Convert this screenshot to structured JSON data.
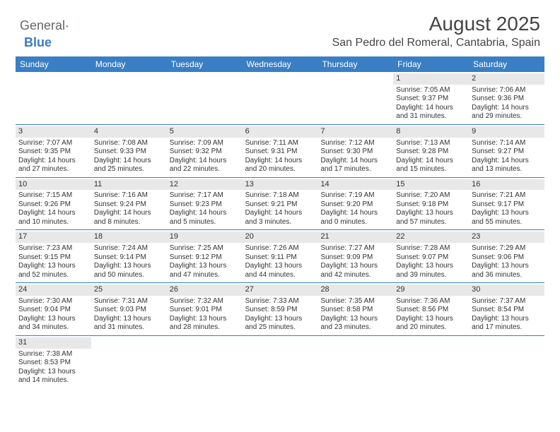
{
  "brand": {
    "part1": "General",
    "part2": "Blue"
  },
  "header": {
    "title": "August 2025",
    "location": "San Pedro del Romeral, Cantabria, Spain"
  },
  "colors": {
    "header_bar": "#3a7fc4",
    "row_divider": "#3a7fc4",
    "daynum_bg": "#e8e8e8",
    "text": "#333333",
    "brand_blue": "#3a7bbf"
  },
  "daysOfWeek": [
    "Sunday",
    "Monday",
    "Tuesday",
    "Wednesday",
    "Thursday",
    "Friday",
    "Saturday"
  ],
  "weeks": [
    [
      {
        "day": "",
        "lines": []
      },
      {
        "day": "",
        "lines": []
      },
      {
        "day": "",
        "lines": []
      },
      {
        "day": "",
        "lines": []
      },
      {
        "day": "",
        "lines": []
      },
      {
        "day": "1",
        "lines": [
          "Sunrise: 7:05 AM",
          "Sunset: 9:37 PM",
          "Daylight: 14 hours and 31 minutes."
        ]
      },
      {
        "day": "2",
        "lines": [
          "Sunrise: 7:06 AM",
          "Sunset: 9:36 PM",
          "Daylight: 14 hours and 29 minutes."
        ]
      }
    ],
    [
      {
        "day": "3",
        "lines": [
          "Sunrise: 7:07 AM",
          "Sunset: 9:35 PM",
          "Daylight: 14 hours and 27 minutes."
        ]
      },
      {
        "day": "4",
        "lines": [
          "Sunrise: 7:08 AM",
          "Sunset: 9:33 PM",
          "Daylight: 14 hours and 25 minutes."
        ]
      },
      {
        "day": "5",
        "lines": [
          "Sunrise: 7:09 AM",
          "Sunset: 9:32 PM",
          "Daylight: 14 hours and 22 minutes."
        ]
      },
      {
        "day": "6",
        "lines": [
          "Sunrise: 7:11 AM",
          "Sunset: 9:31 PM",
          "Daylight: 14 hours and 20 minutes."
        ]
      },
      {
        "day": "7",
        "lines": [
          "Sunrise: 7:12 AM",
          "Sunset: 9:30 PM",
          "Daylight: 14 hours and 17 minutes."
        ]
      },
      {
        "day": "8",
        "lines": [
          "Sunrise: 7:13 AM",
          "Sunset: 9:28 PM",
          "Daylight: 14 hours and 15 minutes."
        ]
      },
      {
        "day": "9",
        "lines": [
          "Sunrise: 7:14 AM",
          "Sunset: 9:27 PM",
          "Daylight: 14 hours and 13 minutes."
        ]
      }
    ],
    [
      {
        "day": "10",
        "lines": [
          "Sunrise: 7:15 AM",
          "Sunset: 9:26 PM",
          "Daylight: 14 hours and 10 minutes."
        ]
      },
      {
        "day": "11",
        "lines": [
          "Sunrise: 7:16 AM",
          "Sunset: 9:24 PM",
          "Daylight: 14 hours and 8 minutes."
        ]
      },
      {
        "day": "12",
        "lines": [
          "Sunrise: 7:17 AM",
          "Sunset: 9:23 PM",
          "Daylight: 14 hours and 5 minutes."
        ]
      },
      {
        "day": "13",
        "lines": [
          "Sunrise: 7:18 AM",
          "Sunset: 9:21 PM",
          "Daylight: 14 hours and 3 minutes."
        ]
      },
      {
        "day": "14",
        "lines": [
          "Sunrise: 7:19 AM",
          "Sunset: 9:20 PM",
          "Daylight: 14 hours and 0 minutes."
        ]
      },
      {
        "day": "15",
        "lines": [
          "Sunrise: 7:20 AM",
          "Sunset: 9:18 PM",
          "Daylight: 13 hours and 57 minutes."
        ]
      },
      {
        "day": "16",
        "lines": [
          "Sunrise: 7:21 AM",
          "Sunset: 9:17 PM",
          "Daylight: 13 hours and 55 minutes."
        ]
      }
    ],
    [
      {
        "day": "17",
        "lines": [
          "Sunrise: 7:23 AM",
          "Sunset: 9:15 PM",
          "Daylight: 13 hours and 52 minutes."
        ]
      },
      {
        "day": "18",
        "lines": [
          "Sunrise: 7:24 AM",
          "Sunset: 9:14 PM",
          "Daylight: 13 hours and 50 minutes."
        ]
      },
      {
        "day": "19",
        "lines": [
          "Sunrise: 7:25 AM",
          "Sunset: 9:12 PM",
          "Daylight: 13 hours and 47 minutes."
        ]
      },
      {
        "day": "20",
        "lines": [
          "Sunrise: 7:26 AM",
          "Sunset: 9:11 PM",
          "Daylight: 13 hours and 44 minutes."
        ]
      },
      {
        "day": "21",
        "lines": [
          "Sunrise: 7:27 AM",
          "Sunset: 9:09 PM",
          "Daylight: 13 hours and 42 minutes."
        ]
      },
      {
        "day": "22",
        "lines": [
          "Sunrise: 7:28 AM",
          "Sunset: 9:07 PM",
          "Daylight: 13 hours and 39 minutes."
        ]
      },
      {
        "day": "23",
        "lines": [
          "Sunrise: 7:29 AM",
          "Sunset: 9:06 PM",
          "Daylight: 13 hours and 36 minutes."
        ]
      }
    ],
    [
      {
        "day": "24",
        "lines": [
          "Sunrise: 7:30 AM",
          "Sunset: 9:04 PM",
          "Daylight: 13 hours and 34 minutes."
        ]
      },
      {
        "day": "25",
        "lines": [
          "Sunrise: 7:31 AM",
          "Sunset: 9:03 PM",
          "Daylight: 13 hours and 31 minutes."
        ]
      },
      {
        "day": "26",
        "lines": [
          "Sunrise: 7:32 AM",
          "Sunset: 9:01 PM",
          "Daylight: 13 hours and 28 minutes."
        ]
      },
      {
        "day": "27",
        "lines": [
          "Sunrise: 7:33 AM",
          "Sunset: 8:59 PM",
          "Daylight: 13 hours and 25 minutes."
        ]
      },
      {
        "day": "28",
        "lines": [
          "Sunrise: 7:35 AM",
          "Sunset: 8:58 PM",
          "Daylight: 13 hours and 23 minutes."
        ]
      },
      {
        "day": "29",
        "lines": [
          "Sunrise: 7:36 AM",
          "Sunset: 8:56 PM",
          "Daylight: 13 hours and 20 minutes."
        ]
      },
      {
        "day": "30",
        "lines": [
          "Sunrise: 7:37 AM",
          "Sunset: 8:54 PM",
          "Daylight: 13 hours and 17 minutes."
        ]
      }
    ],
    [
      {
        "day": "31",
        "lines": [
          "Sunrise: 7:38 AM",
          "Sunset: 8:53 PM",
          "Daylight: 13 hours and 14 minutes."
        ]
      },
      {
        "day": "",
        "lines": []
      },
      {
        "day": "",
        "lines": []
      },
      {
        "day": "",
        "lines": []
      },
      {
        "day": "",
        "lines": []
      },
      {
        "day": "",
        "lines": []
      },
      {
        "day": "",
        "lines": []
      }
    ]
  ]
}
